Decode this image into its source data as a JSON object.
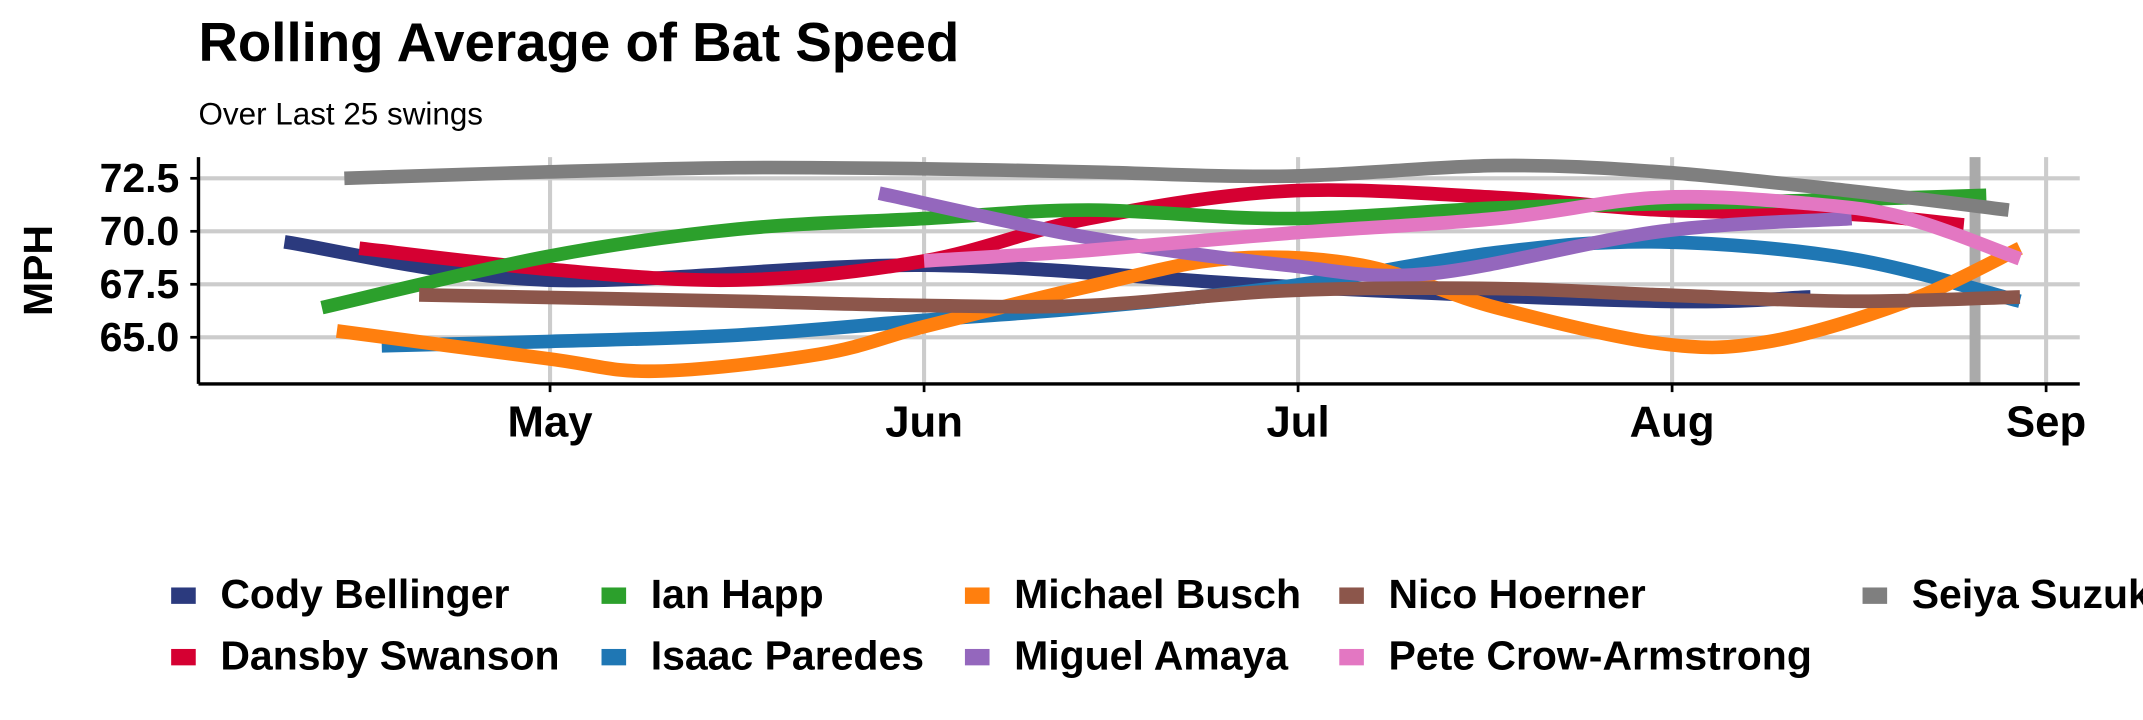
{
  "chart_data": {
    "type": "line",
    "title": "Rolling Average of Bat Speed",
    "subtitle": "Over Last 25 swings",
    "y_label": "MPH",
    "xlim": [
      4.06,
      9.09
    ],
    "ylim": [
      62.8,
      73.5
    ],
    "xticks": [
      {
        "value": 5,
        "label": "May"
      },
      {
        "value": 6,
        "label": "Jun"
      },
      {
        "value": 7,
        "label": "Jul"
      },
      {
        "value": 8,
        "label": "Aug"
      },
      {
        "value": 9,
        "label": "Sep"
      }
    ],
    "yticks": [
      {
        "value": 65,
        "label": "65.0"
      },
      67.5,
      {
        "value": 70,
        "label": "70.0"
      },
      72.5
    ],
    "grid": true,
    "vline": 8.81,
    "vline_color": "#aaaaaa",
    "legend": "bottom",
    "series": [
      {
        "name": "Cody Bellinger",
        "color": "#2b3a7e",
        "x": [
          4.29,
          4.99,
          6.0,
          6.97,
          7.97,
          8.37
        ],
        "values": [
          69.5,
          67.7,
          68.4,
          67.4,
          66.7,
          66.9
        ]
      },
      {
        "name": "Dansby Swanson",
        "color": "#d50032",
        "x": [
          4.49,
          5.0,
          5.5,
          6.0,
          6.44,
          6.97,
          7.53,
          7.97,
          8.48,
          8.78
        ],
        "values": [
          69.2,
          68.2,
          67.7,
          68.6,
          70.6,
          71.9,
          71.6,
          71.0,
          70.8,
          70.3
        ]
      },
      {
        "name": "Ian Happ",
        "color": "#2ca02c",
        "x": [
          4.39,
          4.99,
          5.5,
          6.0,
          6.44,
          6.97,
          7.53,
          7.97,
          8.48,
          8.84
        ],
        "values": [
          66.4,
          68.8,
          70.1,
          70.6,
          71.0,
          70.6,
          71.1,
          71.3,
          71.5,
          71.7
        ]
      },
      {
        "name": "Isaac Paredes",
        "color": "#1f77b4",
        "x": [
          4.55,
          4.99,
          5.5,
          6.0,
          6.44,
          6.97,
          7.53,
          7.97,
          8.48,
          8.93
        ],
        "values": [
          64.6,
          64.8,
          65.1,
          65.8,
          66.4,
          67.4,
          69.0,
          69.5,
          68.7,
          66.7
        ]
      },
      {
        "name": "Michael Busch",
        "color": "#ff7f0e",
        "x": [
          4.43,
          4.99,
          5.28,
          5.72,
          6.0,
          6.44,
          6.81,
          7.17,
          7.53,
          7.97,
          8.26,
          8.63,
          8.93
        ],
        "values": [
          65.3,
          64.0,
          63.4,
          64.2,
          65.5,
          67.4,
          68.7,
          68.4,
          66.4,
          64.7,
          64.8,
          66.7,
          69.2
        ]
      },
      {
        "name": "Miguel Amaya",
        "color": "#9467bd",
        "x": [
          5.88,
          6.44,
          6.97,
          7.35,
          7.97,
          8.48
        ],
        "values": [
          71.8,
          69.7,
          68.4,
          68.0,
          70.0,
          70.6
        ]
      },
      {
        "name": "Nico Hoerner",
        "color": "#8c564b",
        "x": [
          4.65,
          5.5,
          6.0,
          6.44,
          6.97,
          7.53,
          7.97,
          8.48,
          8.93
        ],
        "values": [
          67.0,
          66.7,
          66.5,
          66.5,
          67.2,
          67.3,
          67.0,
          66.7,
          66.9
        ]
      },
      {
        "name": "Pete Crow-Armstrong",
        "color": "#e377c2",
        "x": [
          6.0,
          6.44,
          6.97,
          7.53,
          7.97,
          8.37,
          8.63,
          8.93
        ],
        "values": [
          68.6,
          69.1,
          69.9,
          70.6,
          71.6,
          71.3,
          70.6,
          68.7
        ]
      },
      {
        "name": "Seiya Suzuki",
        "color": "#7f7f7f",
        "x": [
          4.45,
          4.99,
          5.5,
          6.0,
          6.44,
          6.97,
          7.53,
          7.97,
          8.48,
          8.9
        ],
        "values": [
          72.5,
          72.8,
          73.0,
          72.95,
          72.8,
          72.6,
          73.1,
          72.8,
          71.9,
          71.0
        ]
      }
    ]
  }
}
